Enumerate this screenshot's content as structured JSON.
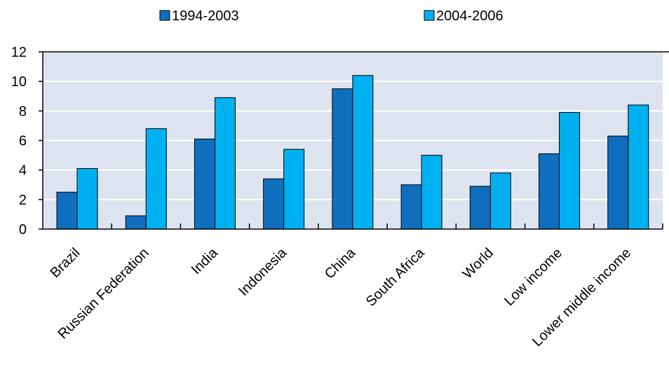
{
  "chart_data": {
    "type": "bar",
    "title": "",
    "xlabel": "",
    "ylabel": "",
    "ylim": [
      0,
      12
    ],
    "yticks": [
      0,
      2,
      4,
      6,
      8,
      10,
      12
    ],
    "grid": true,
    "legend_position": "top",
    "colors": {
      "plot_bg": "#dde3ef",
      "grid": "#ffffff",
      "series": [
        "#0f6fbe",
        "#00b0f0"
      ]
    },
    "categories": [
      "Brazil",
      "Russian Federation",
      "India",
      "Indonesia",
      "China",
      "South Africa",
      "World",
      "Low income",
      "Lower middle income"
    ],
    "series": [
      {
        "name": "1994-2003",
        "values": [
          2.5,
          0.9,
          6.1,
          3.4,
          9.5,
          3.0,
          2.9,
          5.1,
          6.3
        ]
      },
      {
        "name": "2004-2006",
        "values": [
          4.1,
          6.8,
          8.9,
          5.4,
          10.4,
          5.0,
          3.8,
          7.9,
          8.4
        ]
      }
    ]
  }
}
